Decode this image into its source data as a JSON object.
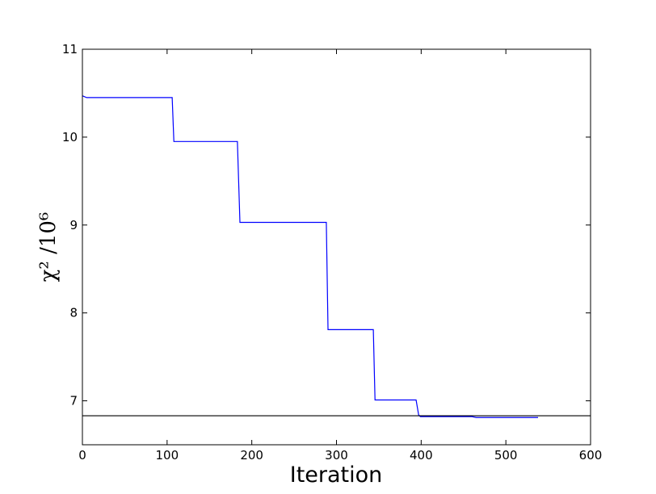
{
  "chart_data": {
    "type": "line",
    "x_label": "Iteration",
    "y_label": "χ² /10⁶",
    "x": [
      0,
      5,
      106,
      108,
      183,
      186,
      288,
      290,
      343.5,
      345.5,
      394,
      397,
      399,
      460,
      465,
      538
    ],
    "series": [
      {
        "name": "chi2",
        "color": "#0000ff",
        "values": [
          10.47,
          10.45,
          10.45,
          9.95,
          9.95,
          9.03,
          9.03,
          7.81,
          7.81,
          7.01,
          7.01,
          6.84,
          6.82,
          6.82,
          6.81,
          6.81
        ]
      }
    ],
    "hline": {
      "value": 6.83,
      "color": "#000000"
    },
    "xlim": [
      0,
      600
    ],
    "ylim": [
      6.5,
      11
    ],
    "xticks": [
      0,
      100,
      200,
      300,
      400,
      500,
      600
    ],
    "yticks": [
      7,
      8,
      9,
      10,
      11
    ]
  }
}
